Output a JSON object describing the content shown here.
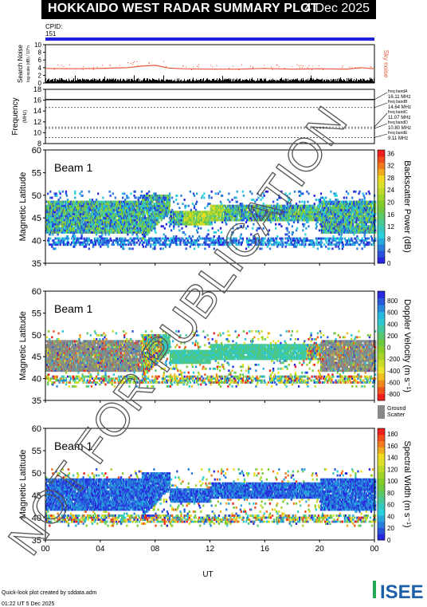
{
  "header": {
    "title": "HOKKAIDO WEST RADAR SUMMARY PLOT",
    "date": "4 Dec 2025",
    "cpid_label": "CPID:",
    "cpid_value": "151"
  },
  "footer": {
    "line1": "Quick-look plot created by sddata.adm",
    "line2": "01:22 UT  5 Dec 2025",
    "logo_text": "ISEE",
    "x_title": "UT"
  },
  "watermark": "NOT FOR PUBLICATION",
  "colors": {
    "blue": "#2222dd",
    "green": "#22aa33",
    "yellow": "#eeee22",
    "red": "#dd2222",
    "gray": "#888888",
    "sky": "#e8573a",
    "logo_green": "#22aa55",
    "logo_blue": "#1e5fa8"
  },
  "chart_data": [
    {
      "type": "line",
      "panel": "noise",
      "ylabel": "Search Noise",
      "ylabel2": "log-scale (dB) / 10^n",
      "yticks": [
        "0",
        "2",
        "4",
        "6",
        "8",
        "10"
      ],
      "ylim": [
        0,
        10
      ],
      "legend": "Sky noise",
      "series": [
        {
          "name": "Sky noise",
          "x": [
            0,
            2,
            4,
            6,
            7,
            8,
            9,
            10,
            12,
            14,
            16,
            18,
            20,
            22,
            23,
            24
          ],
          "y": [
            3.8,
            3.7,
            3.8,
            4.0,
            4.4,
            4.6,
            3.9,
            3.7,
            3.6,
            3.6,
            3.8,
            3.6,
            3.7,
            3.6,
            4.0,
            3.7
          ]
        }
      ]
    },
    {
      "type": "line",
      "panel": "frequency",
      "ylabel": "Frequency",
      "yunit": "(MHz)",
      "yticks": [
        "8",
        "10",
        "12",
        "14",
        "16",
        "18"
      ],
      "ylim": [
        8,
        18
      ],
      "bands": [
        {
          "label": "freq bandA",
          "value": "16.11 MHz",
          "f": 16.11
        },
        {
          "label": "freq bandB",
          "value": "14.64 MHz",
          "f": 14.64
        },
        {
          "label": "freq bandC",
          "value": "11.07 MHz",
          "f": 11.07
        },
        {
          "label": "freq bandD",
          "value": "10.80 MHz",
          "f": 10.8
        },
        {
          "label": "freq bandE",
          "value": "9.11 MHz",
          "f": 9.11
        }
      ]
    },
    {
      "type": "heatmap",
      "panel": "power",
      "beam_label": "Beam  1",
      "ylabel": "Magnetic Latitude",
      "yticks": [
        "35",
        "40",
        "45",
        "50",
        "55",
        "60"
      ],
      "ylim": [
        35,
        60
      ],
      "xticks": [
        "00",
        "04",
        "08",
        "12",
        "16",
        "20",
        "00"
      ],
      "colorbar_label": "Backscatter Power (dB)",
      "colorbar_ticks": [
        "0",
        "4",
        "8",
        "12",
        "16",
        "20",
        "24",
        "28",
        "32",
        "36"
      ]
    },
    {
      "type": "heatmap",
      "panel": "velocity",
      "beam_label": "Beam  1",
      "ylabel": "Magnetic Latitude",
      "yticks": [
        "35",
        "40",
        "45",
        "50",
        "55",
        "60"
      ],
      "ylim": [
        35,
        60
      ],
      "xticks": [
        "00",
        "04",
        "08",
        "12",
        "16",
        "20",
        "00"
      ],
      "colorbar_label": "Doppler Velocity (m s⁻¹)",
      "colorbar_ticks": [
        "800",
        "600",
        "400",
        "200",
        "0",
        "-200",
        "-400",
        "-600",
        "-800"
      ],
      "ground_label": "Ground",
      "ground_label2": "Scatter"
    },
    {
      "type": "heatmap",
      "panel": "width",
      "beam_label": "Beam  1",
      "ylabel": "Magnetic Latitude",
      "yticks": [
        "35",
        "40",
        "45",
        "50",
        "55",
        "60"
      ],
      "ylim": [
        35,
        60
      ],
      "xticks": [
        "00",
        "04",
        "08",
        "12",
        "16",
        "20",
        "00"
      ],
      "xlabel": "UT",
      "colorbar_label": "Spectral Width (m s⁻¹)",
      "colorbar_ticks": [
        "0",
        "20",
        "40",
        "60",
        "80",
        "100",
        "120",
        "140",
        "160",
        "180"
      ]
    }
  ]
}
